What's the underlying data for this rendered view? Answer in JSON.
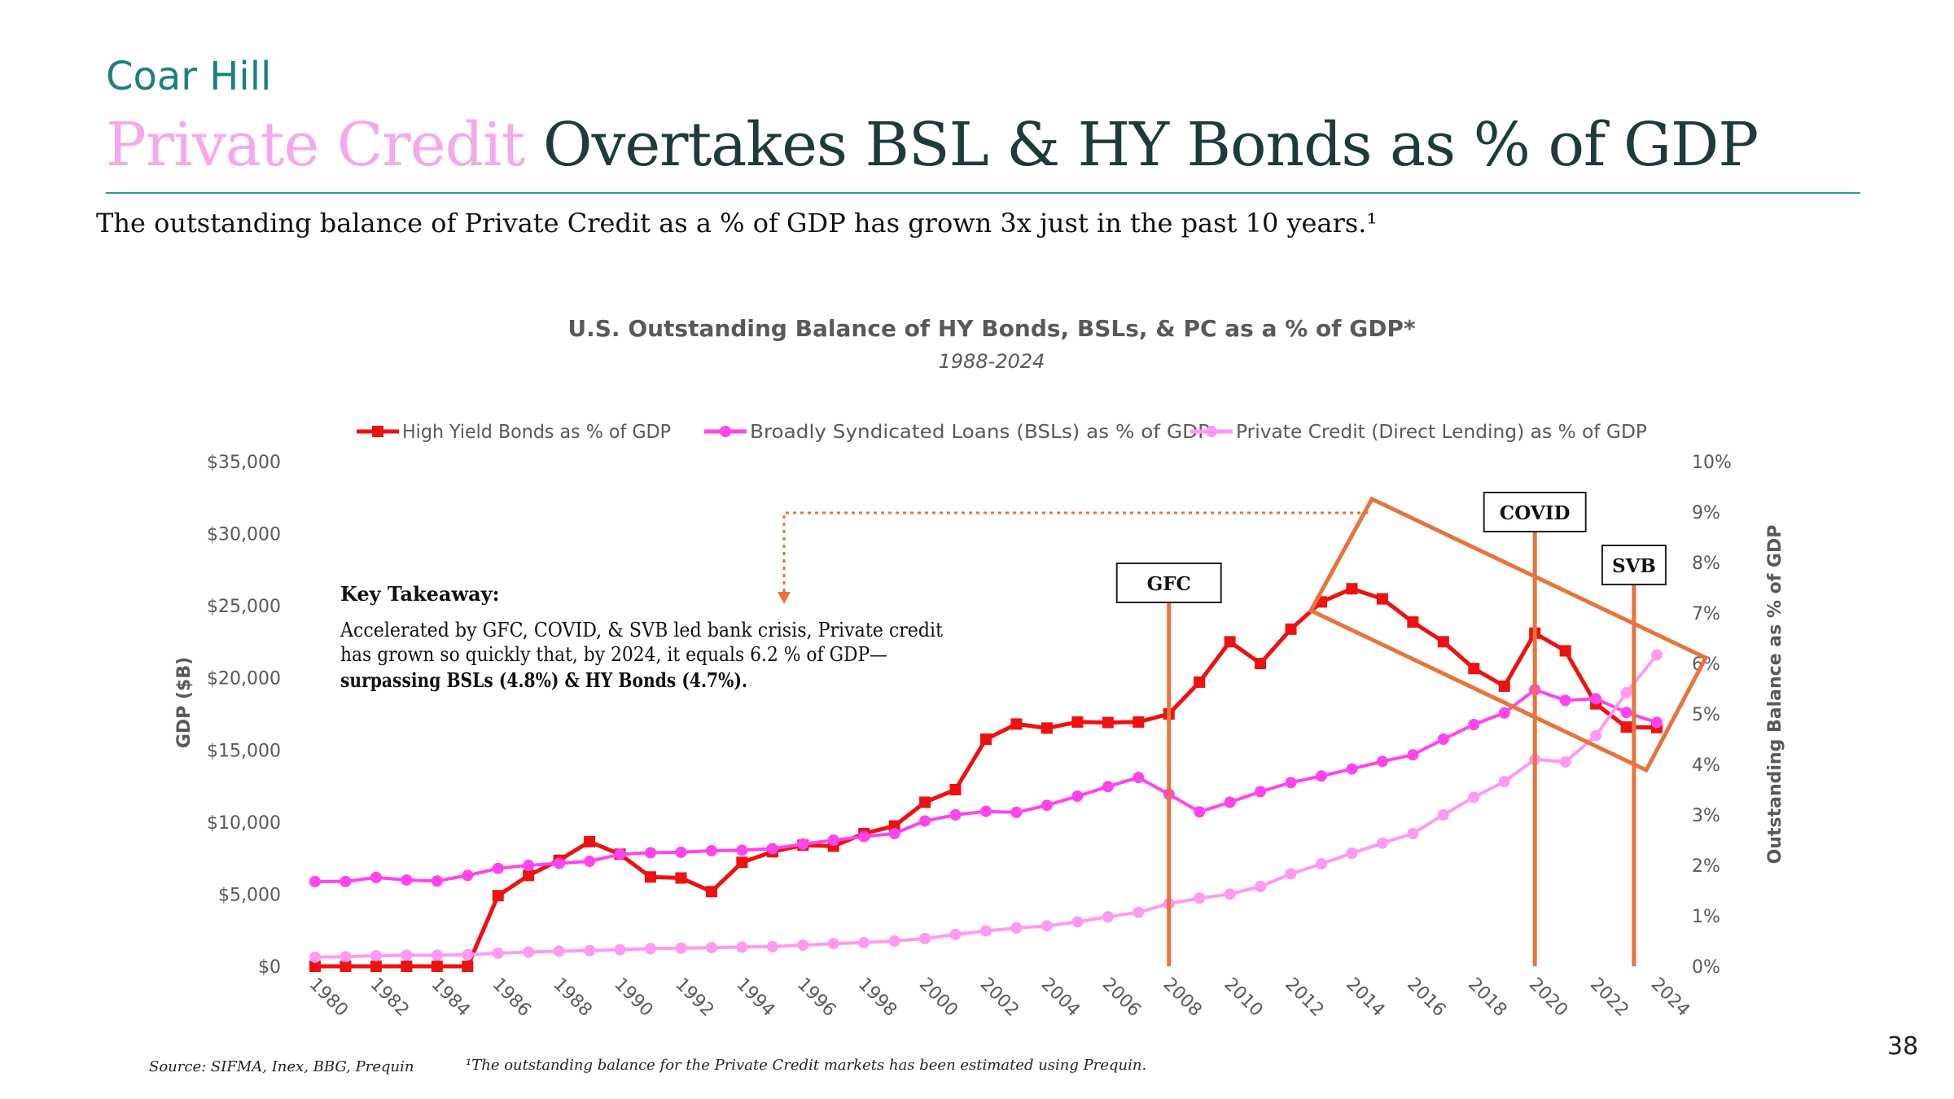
{
  "header": {
    "brand": "Coar Hill",
    "title_accent": "Private Credit",
    "title_rest": "Overtakes BSL & HY Bonds as % of GDP",
    "subtitle": "The outstanding balance of Private Credit as a % of GDP has grown 3x just in the past 10 years.¹"
  },
  "chart_data": {
    "type": "line",
    "title": "U.S. Outstanding Balance of HY Bonds, BSLs, & PC as a % of GDP*",
    "subtitle": "1988-2024",
    "ylabel_left": "GDP ($B)",
    "ylabel_right": "Outstanding Balance as % of GDP",
    "y_left_ticks": [
      "$0",
      "$5,000",
      "$10,000",
      "$15,000",
      "$20,000",
      "$25,000",
      "$30,000",
      "$35,000"
    ],
    "y_right_ticks": [
      "0%",
      "1%",
      "2%",
      "3%",
      "4%",
      "5%",
      "6%",
      "7%",
      "8%",
      "9%",
      "10%"
    ],
    "y_left_range": [
      0,
      35000
    ],
    "y_right_range": [
      0,
      10
    ],
    "x_tick_labels": [
      "1980",
      "1982",
      "1984",
      "1986",
      "1988",
      "1990",
      "1992",
      "1994",
      "1996",
      "1998",
      "2000",
      "2002",
      "2004",
      "2006",
      "2008",
      "2010",
      "2012",
      "2014",
      "2016",
      "2018",
      "2020",
      "2022",
      "2024"
    ],
    "legend_position": "top",
    "x": [
      1980,
      1981,
      1982,
      1983,
      1984,
      1985,
      1986,
      1987,
      1988,
      1989,
      1990,
      1991,
      1992,
      1993,
      1994,
      1995,
      1996,
      1997,
      1998,
      1999,
      2000,
      2001,
      2002,
      2003,
      2004,
      2005,
      2006,
      2007,
      2008,
      2009,
      2010,
      2011,
      2012,
      2013,
      2014,
      2015,
      2016,
      2017,
      2018,
      2019,
      2020,
      2021,
      2022,
      2023,
      2024
    ],
    "series": [
      {
        "name": "High Yield Bonds as % of GDP",
        "color": "#ee1111",
        "marker": "square",
        "values": [
          0,
          0,
          0,
          0,
          0,
          0,
          1.4,
          1.8,
          2.1,
          2.47,
          2.22,
          1.77,
          1.75,
          1.48,
          2.06,
          2.27,
          2.4,
          2.38,
          2.63,
          2.78,
          3.25,
          3.5,
          4.5,
          4.8,
          4.72,
          4.84,
          4.83,
          4.84,
          5.0,
          5.63,
          6.43,
          6.0,
          6.68,
          7.22,
          7.48,
          7.28,
          6.82,
          6.43,
          5.9,
          5.55,
          6.6,
          6.25,
          5.2,
          4.74,
          4.73
        ]
      },
      {
        "name": "Broadly Syndicated Loans (BSLs) as % of GDP",
        "color": "#ff44ee",
        "marker": "circle",
        "values": [
          1.68,
          1.68,
          1.76,
          1.71,
          1.69,
          1.8,
          1.94,
          2.0,
          2.04,
          2.08,
          2.22,
          2.25,
          2.26,
          2.29,
          2.3,
          2.33,
          2.42,
          2.5,
          2.57,
          2.63,
          2.88,
          3.0,
          3.07,
          3.05,
          3.19,
          3.37,
          3.56,
          3.74,
          3.41,
          3.06,
          3.25,
          3.46,
          3.64,
          3.77,
          3.91,
          4.06,
          4.19,
          4.5,
          4.79,
          5.02,
          5.48,
          5.27,
          5.3,
          5.03,
          4.83
        ]
      },
      {
        "name": "Private Credit (Direct Lending) as % of GDP",
        "color": "#ff99f2",
        "marker": "circle",
        "values": [
          0.18,
          0.19,
          0.21,
          0.22,
          0.22,
          0.23,
          0.26,
          0.28,
          0.3,
          0.31,
          0.33,
          0.35,
          0.36,
          0.37,
          0.38,
          0.39,
          0.42,
          0.45,
          0.47,
          0.5,
          0.55,
          0.63,
          0.7,
          0.76,
          0.8,
          0.88,
          0.98,
          1.07,
          1.24,
          1.35,
          1.43,
          1.58,
          1.83,
          2.03,
          2.24,
          2.44,
          2.63,
          3.0,
          3.35,
          3.66,
          4.1,
          4.05,
          4.57,
          5.42,
          6.17
        ]
      }
    ],
    "events": [
      {
        "label": "GFC",
        "year": 2008
      },
      {
        "label": "COVID",
        "year": 2020
      },
      {
        "label": "SVB",
        "year": 2023.25
      }
    ],
    "key_takeaway": {
      "heading": "Key Takeaway:",
      "line1": "Accelerated by GFC, COVID, & SVB led bank crisis, Private credit",
      "line2": "has grown so quickly that, by 2024, it equals 6.2 % of GDP—",
      "line3": "surpassing BSLs (4.8%) & HY Bonds (4.7%)."
    }
  },
  "colors": {
    "brand": "#1f7f7d",
    "title": "#1e3a3a",
    "accent": "#f7a8ec",
    "annotation": "#e8743b",
    "axis_text": "#595959"
  },
  "footer": {
    "source": "Source: SIFMA, Inex, BBG, Prequin",
    "note": "¹The outstanding balance for the Private Credit markets has been estimated using Prequin.",
    "page_number": "38"
  }
}
